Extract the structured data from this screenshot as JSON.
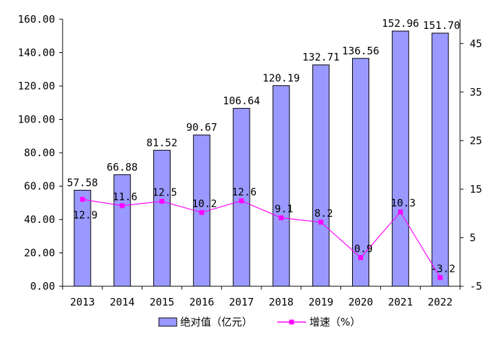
{
  "chart_data": {
    "type": "bar",
    "categories": [
      "2013",
      "2014",
      "2015",
      "2016",
      "2017",
      "2018",
      "2019",
      "2020",
      "2021",
      "2022"
    ],
    "series": [
      {
        "name": "绝对值（亿元）",
        "type": "bar",
        "axis": "left",
        "color": "#9999ff",
        "values": [
          57.58,
          66.88,
          81.52,
          90.67,
          106.64,
          120.19,
          132.71,
          136.56,
          152.96,
          151.7
        ],
        "labels": [
          "57.58",
          "66.88",
          "81.52",
          "90.67",
          "106.64",
          "120.19",
          "132.71",
          "136.56",
          "152.96",
          "151.70"
        ]
      },
      {
        "name": "增速（%）",
        "type": "line",
        "axis": "right",
        "color": "#ff00ff",
        "values": [
          12.9,
          11.6,
          12.5,
          10.2,
          12.6,
          9.1,
          8.2,
          0.9,
          10.3,
          -3.2
        ],
        "labels": [
          "12.9",
          "11.6",
          "12.5",
          "10.2",
          "12.6",
          "9.1",
          "8.2",
          "0.9",
          "10.3",
          "-3.2"
        ]
      }
    ],
    "y_left": {
      "ylim": [
        0,
        160
      ],
      "ticks": [
        0,
        20,
        40,
        60,
        80,
        100,
        120,
        140,
        160
      ],
      "tick_labels": [
        "0.00",
        "20.00",
        "40.00",
        "60.00",
        "80.00",
        "100.00",
        "120.00",
        "140.00",
        "160.00"
      ]
    },
    "y_right": {
      "ylim": [
        -5,
        50
      ],
      "ticks": [
        -5,
        5,
        15,
        25,
        35,
        45
      ],
      "tick_labels": [
        "-5",
        "5",
        "15",
        "25",
        "35",
        "45"
      ]
    },
    "grid": false,
    "legend_position": "bottom",
    "title": "",
    "xlabel": "",
    "ylabel": ""
  }
}
